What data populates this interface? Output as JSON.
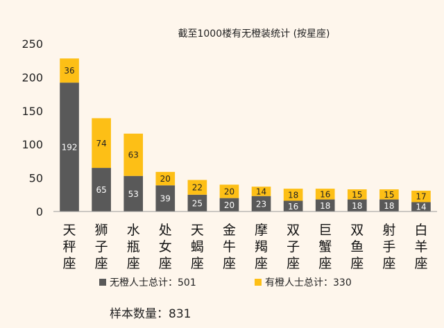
{
  "chart_data": {
    "type": "bar",
    "stacked": true,
    "title": "截至1000楼有无橙装统计 (按星座)",
    "categories": [
      "天秤座",
      "狮子座",
      "水瓶座",
      "处女座",
      "天蝎座",
      "金牛座",
      "摩羯座",
      "双子座",
      "巨蟹座",
      "双鱼座",
      "射手座",
      "白羊座"
    ],
    "series": [
      {
        "name": "无橙人士总计：501",
        "color": "#595959",
        "label_color": "#ffffff",
        "values": [
          192,
          65,
          53,
          39,
          25,
          20,
          23,
          16,
          18,
          18,
          18,
          14
        ]
      },
      {
        "name": "有橙人士总计：330",
        "color": "#fdbf16",
        "label_color": "#222222",
        "values": [
          36,
          74,
          63,
          20,
          22,
          20,
          14,
          18,
          16,
          15,
          15,
          17
        ]
      }
    ],
    "ylim": [
      0,
      250
    ],
    "yticks": [
      0,
      50,
      100,
      150,
      200,
      250
    ],
    "grid": false,
    "legend_position": "bottom"
  },
  "sample_text": "样本数量：831"
}
